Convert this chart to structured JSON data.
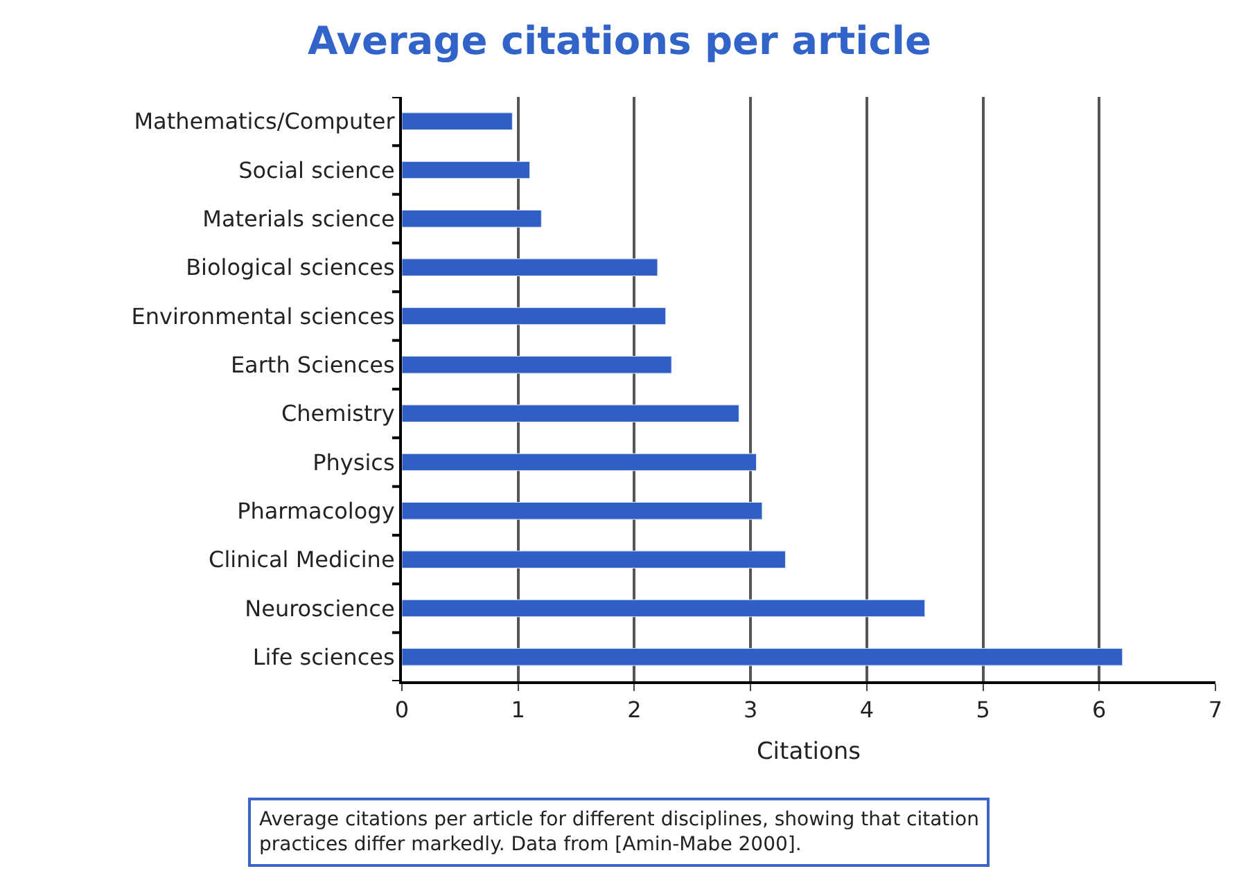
{
  "chart_data": {
    "type": "bar",
    "orientation": "horizontal",
    "title": "Average citations per article",
    "xlabel": "Citations",
    "categories": [
      "Mathematics/Computer",
      "Social science",
      "Materials science",
      "Biological sciences",
      "Environmental sciences",
      "Earth Sciences",
      "Chemistry",
      "Physics",
      "Pharmacology",
      "Clinical Medicine",
      "Neuroscience",
      "Life sciences"
    ],
    "values": [
      0.95,
      1.1,
      1.2,
      2.2,
      2.27,
      2.32,
      2.9,
      3.05,
      3.1,
      3.3,
      4.5,
      6.2
    ],
    "color": "#2f5fc4",
    "xlim": [
      0,
      7
    ],
    "xticks": [
      0,
      1,
      2,
      3,
      4,
      5,
      6,
      7
    ],
    "grid": "x",
    "annotations": [
      "Average citations per article for different disciplines, showing that citation practices differ markedly. Data from [Amin-Mabe 2000]."
    ]
  }
}
